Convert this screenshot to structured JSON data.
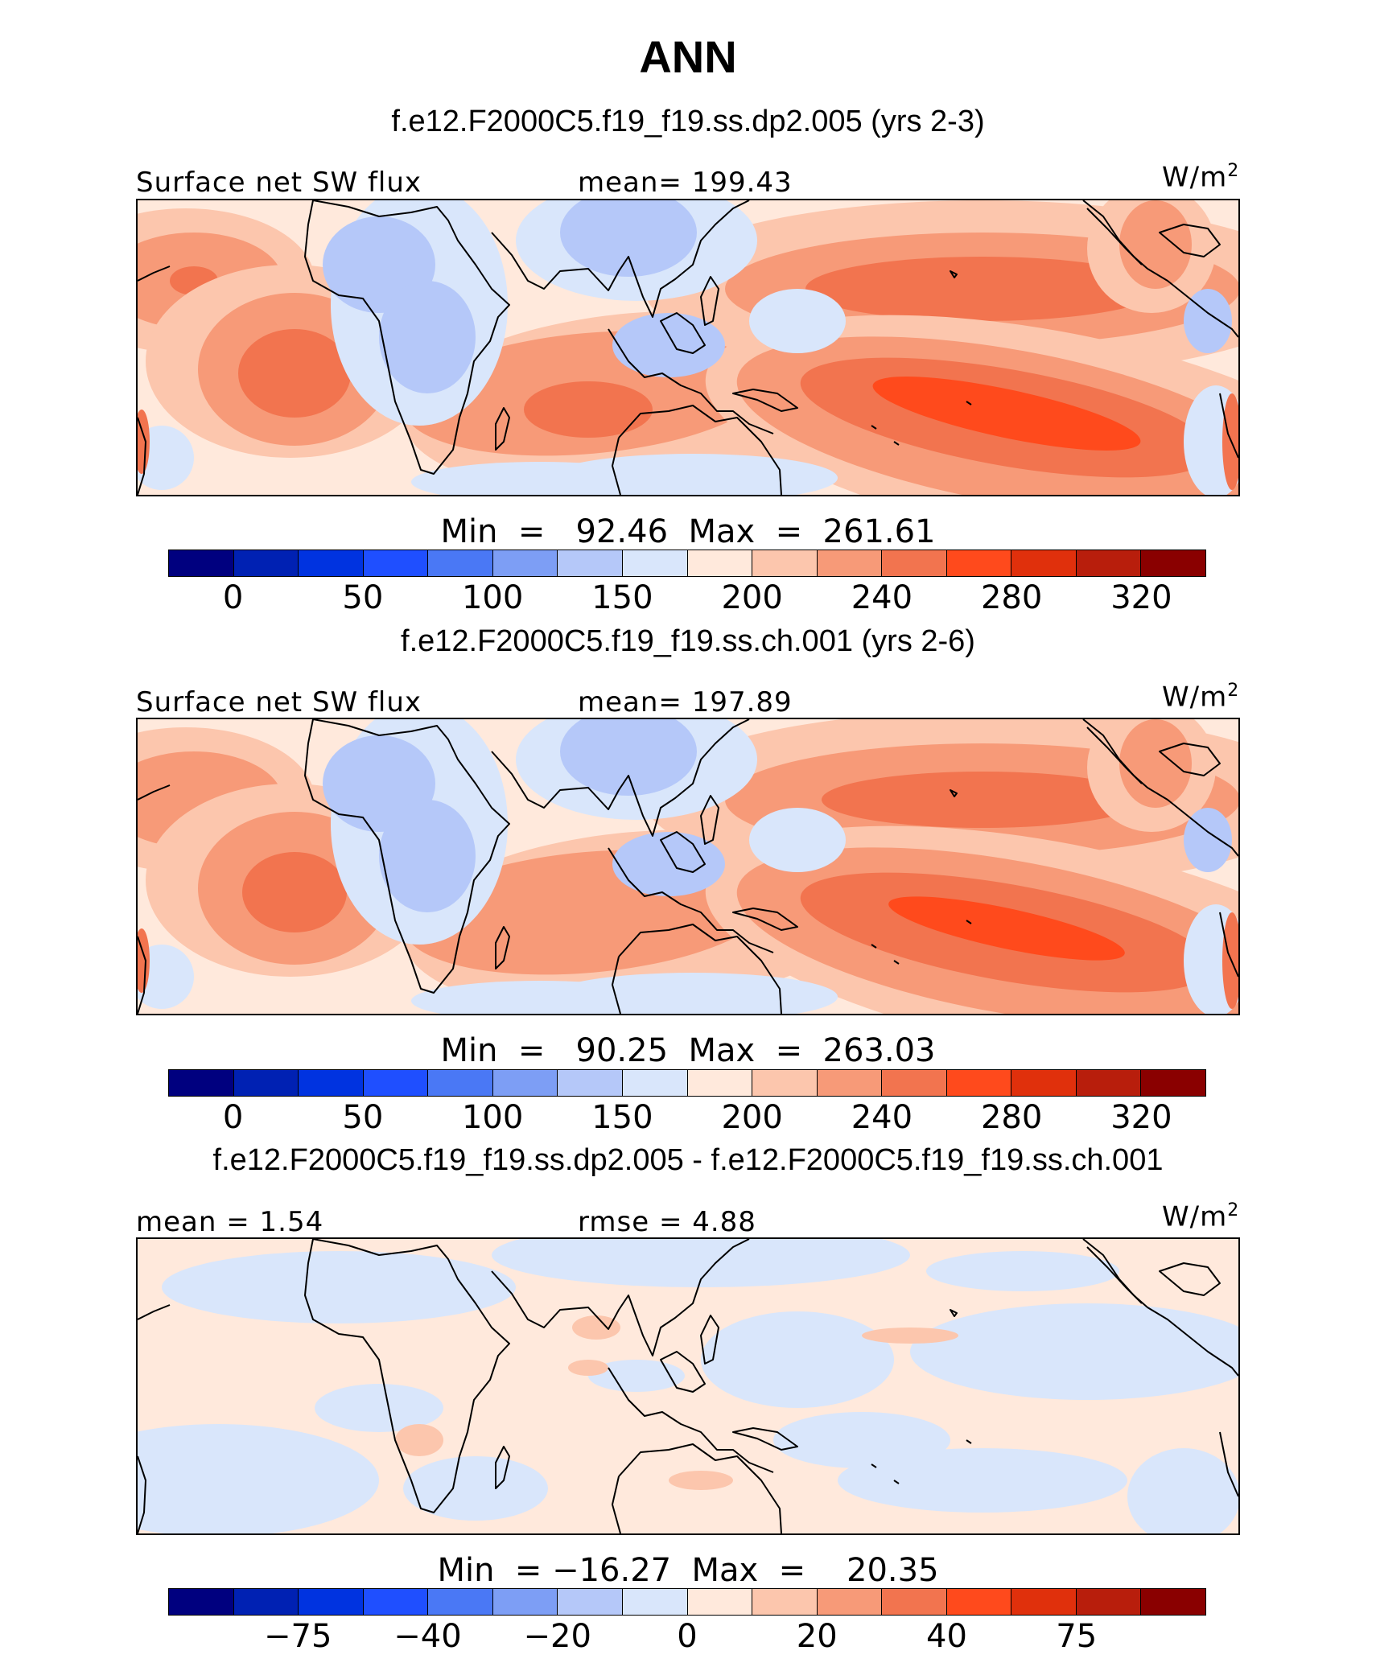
{
  "title": "ANN",
  "colors": [
    "#00007f",
    "#0021b3",
    "#0033e0",
    "#1f4fff",
    "#4a78f5",
    "#7d9ef5",
    "#b5c8f9",
    "#d9e6fb",
    "#ffe9dc",
    "#fcc6ad",
    "#f79a78",
    "#f2744f",
    "#ff4a1c",
    "#e0300c",
    "#b81e0c",
    "#8a0000"
  ],
  "unit_base": "W/m",
  "unit_exp": "2",
  "panels": [
    {
      "subtitle": "f.e12.F2000C5.f19_f19.ss.dp2.005 (yrs 2-3)",
      "left_label": "Surface net SW flux",
      "center_label": "mean=  199.43",
      "minmax": "Min  =   92.46  Max  =  261.61",
      "ticks": [
        "0",
        "50",
        "100",
        "150",
        "200",
        "240",
        "280",
        "320"
      ],
      "kind": "abs1"
    },
    {
      "subtitle": "f.e12.F2000C5.f19_f19.ss.ch.001 (yrs 2-6)",
      "left_label": "Surface net SW flux",
      "center_label": "mean=  197.89",
      "minmax": "Min  =   90.25  Max  =  263.03",
      "ticks": [
        "0",
        "50",
        "100",
        "150",
        "200",
        "240",
        "280",
        "320"
      ],
      "kind": "abs2"
    },
    {
      "subtitle": "f.e12.F2000C5.f19_f19.ss.dp2.005 - f.e12.F2000C5.f19_f19.ss.ch.001",
      "left_label": "mean  =    1.54",
      "center_label": "rmse  =    4.88",
      "minmax": "Min  = −16.27  Max  =    20.35",
      "ticks": [
        "−75",
        "−40",
        "−20",
        "0",
        "20",
        "40",
        "75"
      ],
      "kind": "diff"
    }
  ],
  "chart_data": [
    {
      "type": "heatmap",
      "title": "f.e12.F2000C5.f19_f19.ss.dp2.005 (yrs 2-3)",
      "variable": "Surface net SW flux",
      "units": "W/m2",
      "mean": 199.43,
      "min": 92.46,
      "max": 261.61,
      "colorbar_ticks": [
        0,
        50,
        100,
        150,
        200,
        240,
        280,
        320
      ]
    },
    {
      "type": "heatmap",
      "title": "f.e12.F2000C5.f19_f19.ss.ch.001 (yrs 2-6)",
      "variable": "Surface net SW flux",
      "units": "W/m2",
      "mean": 197.89,
      "min": 90.25,
      "max": 263.03,
      "colorbar_ticks": [
        0,
        50,
        100,
        150,
        200,
        240,
        280,
        320
      ]
    },
    {
      "type": "heatmap",
      "title": "f.e12.F2000C5.f19_f19.ss.dp2.005 - f.e12.F2000C5.f19_f19.ss.ch.001",
      "units": "W/m2",
      "mean": 1.54,
      "rmse": 4.88,
      "min": -16.27,
      "max": 20.35,
      "colorbar_ticks": [
        -75,
        -40,
        -20,
        0,
        20,
        40,
        75
      ]
    }
  ]
}
